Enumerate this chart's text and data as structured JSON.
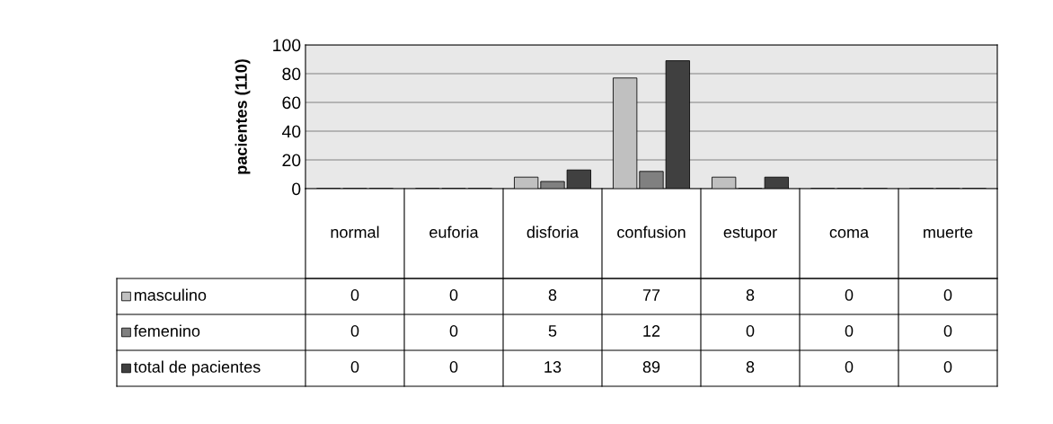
{
  "chart_data": {
    "type": "bar",
    "ylabel": "pacientes (110)",
    "categories": [
      "normal",
      "euforia",
      "disforia",
      "confusion",
      "estupor",
      "coma",
      "muerte"
    ],
    "series": [
      {
        "name": "masculino",
        "color": "#c0c0c0",
        "values": [
          0,
          0,
          8,
          77,
          8,
          0,
          0
        ]
      },
      {
        "name": "femenino",
        "color": "#808080",
        "values": [
          0,
          0,
          5,
          12,
          0,
          0,
          0
        ]
      },
      {
        "name": "total de pacientes",
        "color": "#404040",
        "values": [
          0,
          0,
          13,
          89,
          8,
          0,
          0
        ]
      }
    ],
    "ylim": [
      0,
      100
    ],
    "yticks": [
      0,
      20,
      40,
      60,
      80,
      100
    ],
    "grid": "y",
    "data_labels": true,
    "legend": "bottom left"
  }
}
